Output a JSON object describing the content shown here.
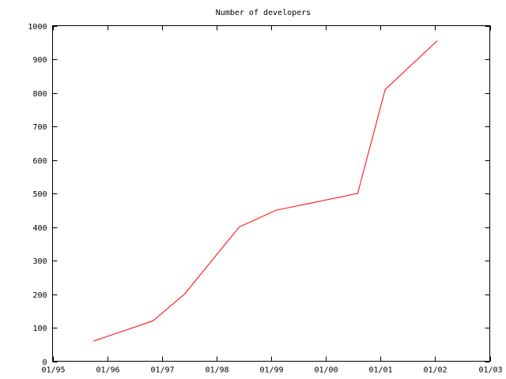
{
  "chart_data": {
    "type": "line",
    "title": "Number of developers",
    "xlabel": "",
    "ylabel": "",
    "x_scale": "time",
    "xlim": [
      "1995-01-01",
      "2003-01-01"
    ],
    "ylim": [
      0,
      1000
    ],
    "x_ticks": [
      {
        "date": "1995-01-01",
        "label": "01/95"
      },
      {
        "date": "1996-01-01",
        "label": "01/96"
      },
      {
        "date": "1997-01-01",
        "label": "01/97"
      },
      {
        "date": "1998-01-01",
        "label": "01/98"
      },
      {
        "date": "1999-01-01",
        "label": "01/99"
      },
      {
        "date": "2000-01-01",
        "label": "01/00"
      },
      {
        "date": "2001-01-01",
        "label": "01/01"
      },
      {
        "date": "2002-01-01",
        "label": "01/02"
      },
      {
        "date": "2003-01-01",
        "label": "01/03"
      }
    ],
    "y_ticks": [
      0,
      100,
      200,
      300,
      400,
      500,
      600,
      700,
      800,
      900,
      1000
    ],
    "grid": false,
    "legend": "none",
    "series": [
      {
        "color": "#ff0000",
        "points": [
          {
            "x": "1995-10-01",
            "y": 60
          },
          {
            "x": "1996-11-01",
            "y": 120
          },
          {
            "x": "1997-06-01",
            "y": 200
          },
          {
            "x": "1998-06-01",
            "y": 400
          },
          {
            "x": "1999-02-01",
            "y": 450
          },
          {
            "x": "2000-08-01",
            "y": 500
          },
          {
            "x": "2001-02-01",
            "y": 810
          },
          {
            "x": "2002-01-15",
            "y": 955
          }
        ]
      }
    ]
  }
}
